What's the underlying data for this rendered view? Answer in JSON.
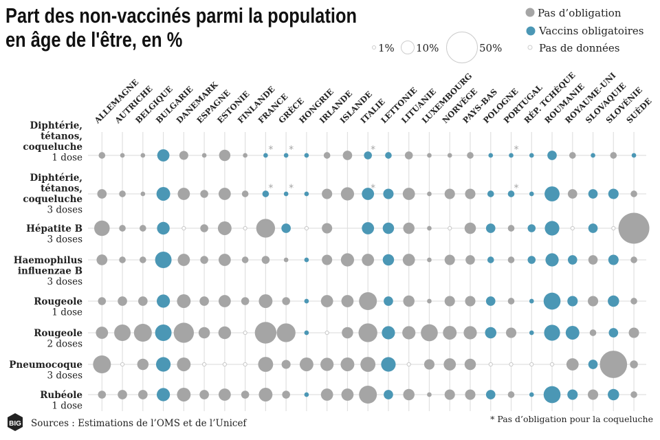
{
  "title_lines": [
    "Part des non-vaccinés parmi la population",
    "en âge de l'être, en %"
  ],
  "legend": {
    "sizes": [
      {
        "value": 1,
        "label": "1%"
      },
      {
        "value": 10,
        "label": "10%"
      },
      {
        "value": 50,
        "label": "50%"
      }
    ],
    "categories": [
      {
        "key": "n",
        "label": "Pas d’obligation",
        "color": "#a5a5a5"
      },
      {
        "key": "o",
        "label": "Vaccins obligatoires",
        "color": "#4b97b5"
      },
      {
        "key": "x",
        "label": "Pas de données",
        "color": "#ffffff"
      }
    ]
  },
  "footer": {
    "logo": "BIG",
    "source": "Sources : Estimations de l’OMS et de l’Unicef",
    "note": "* Pas d’obligation pour la coqueluche"
  },
  "chart_data": {
    "type": "bubble-matrix",
    "size_encoding": "area proportional to percentage of non-vaccinated",
    "columns": [
      "ALLEMAGNE",
      "AUTRICHE",
      "BELGIQUE",
      "BULGARIE",
      "DANEMARK",
      "ESPAGNE",
      "ESTONIE",
      "FINLANDE",
      "FRANCE",
      "GRÈCE",
      "HONGRIE",
      "IRLANDE",
      "ISLANDE",
      "ITALIE",
      "LETTONIE",
      "LITUANIE",
      "LUXEMBOURG",
      "NORVÈGE",
      "PAYS-BAS",
      "POLOGNE",
      "PORTUGAL",
      "RÉP. TCHÈQUE",
      "ROUMANIE",
      "ROYAUME-UNI",
      "SLOVAQUIE",
      "SLOVÉNIE",
      "SUÈDE"
    ],
    "rows": [
      {
        "name": [
          "Diphtérie,",
          "tétanos,",
          "coqueluche"
        ],
        "dose": "1 dose",
        "status": "nnnonnnnooonnoonnnnoooonono",
        "values": [
          2.3,
          1.1,
          1.1,
          7.8,
          4.2,
          1.1,
          6.7,
          1.1,
          1.1,
          1.1,
          1.1,
          2.3,
          4.6,
          3.3,
          2.3,
          3.3,
          1.1,
          1.1,
          2.3,
          1.1,
          1.1,
          1.1,
          4.6,
          2.3,
          1.1,
          2.3,
          1.1
        ],
        "asterisk": [
          "FRANCE",
          "GRÈCE",
          "ITALIE",
          "PORTUGAL"
        ]
      },
      {
        "name": [
          "Diphtérie,",
          "tétanos,",
          "coqueluche"
        ],
        "dose": "3 doses",
        "status": "nnnonnnnooonnoonnnnoooonoon",
        "values": [
          4.6,
          2.3,
          1.1,
          9.8,
          7.8,
          3.3,
          7.8,
          2.3,
          2.3,
          1.1,
          1.1,
          5.6,
          9.1,
          7.8,
          5.6,
          7.8,
          1.1,
          5.6,
          5.6,
          2.3,
          2.3,
          1.1,
          11.8,
          4.6,
          4.6,
          5.6,
          2.3
        ],
        "asterisk": [
          "FRANCE",
          "GRÈCE",
          "ITALIE",
          "PORTUGAL"
        ]
      },
      {
        "name": [
          "Hépatite B"
        ],
        "dose": "3 doses",
        "status": "nnnoxnnxnoxnnoonnxnonooxoxn",
        "values": [
          12.6,
          2.3,
          2.3,
          8.4,
          null,
          3.3,
          9.8,
          null,
          18.5,
          4.6,
          null,
          5.6,
          0,
          7.8,
          6.7,
          6.7,
          1.1,
          null,
          6.7,
          4.6,
          2.3,
          3.3,
          11.1,
          null,
          4.6,
          null,
          50
        ],
        "asterisk": []
      },
      {
        "name": [
          "Haemophilus",
          "influenzae B"
        ],
        "dose": "3 doses",
        "status": "nnnonnnnnnonnnonnnnonooonon",
        "values": [
          6.1,
          2.3,
          2.3,
          14.2,
          7.8,
          3.3,
          7.8,
          2.3,
          3.3,
          1.1,
          1.1,
          5.6,
          9.1,
          7.8,
          6.7,
          7.8,
          1.1,
          5.6,
          4.6,
          2.3,
          2.3,
          3.3,
          9.1,
          4.6,
          4.6,
          5.6,
          2.3
        ],
        "asterisk": []
      },
      {
        "name": [
          "Rougeole"
        ],
        "dose": "1 dose",
        "status": "nnnonnnnnnonnnonnnnonooonon",
        "values": [
          3.3,
          4.6,
          4.6,
          9.1,
          9.8,
          4.6,
          7.8,
          3.3,
          9.8,
          3.3,
          1.1,
          7.8,
          7.8,
          16.7,
          4.6,
          6.7,
          1.1,
          5.6,
          5.6,
          4.6,
          2.3,
          1.1,
          15,
          5.6,
          5.6,
          6.7,
          2.3
        ],
        "asterisk": []
      },
      {
        "name": [
          "Rougeole"
        ],
        "dose": "2 doses",
        "status": "nnnonnnxnnoxnnonnnnonooonon",
        "values": [
          7.8,
          14.2,
          16.7,
          14.2,
          21.3,
          6.7,
          8.4,
          null,
          24.4,
          18.5,
          1.1,
          null,
          6.7,
          18.5,
          9.1,
          9.1,
          15,
          9.8,
          9.1,
          6.7,
          5.6,
          1.1,
          13.3,
          9.8,
          2.3,
          4.6,
          5.6
        ],
        "asterisk": []
      },
      {
        "name": [
          "Pneumocoque"
        ],
        "dose": "3 doses",
        "status": "nxnonxxxnnnnnnoxnnnxxxxnonn",
        "values": [
          16.7,
          null,
          6.7,
          11.1,
          9.8,
          null,
          null,
          null,
          11.8,
          4.2,
          9.8,
          9.1,
          9.8,
          11.8,
          11.1,
          null,
          5.6,
          7.8,
          6.7,
          null,
          null,
          null,
          null,
          7.8,
          4.6,
          38.9,
          3.3
        ],
        "asterisk": []
      },
      {
        "name": [
          "Rubéole"
        ],
        "dose": "1 dose",
        "status": "nnnonnnnnnonnnonnnnonooonon",
        "values": [
          3.3,
          4.6,
          4.6,
          9.1,
          9.8,
          4.6,
          7.8,
          3.3,
          9.8,
          3.3,
          1.1,
          7.8,
          7.8,
          16.7,
          4.6,
          6.7,
          1.1,
          5.6,
          5.6,
          4.6,
          2.3,
          1.1,
          15,
          5.6,
          5.6,
          6.7,
          2.3
        ],
        "asterisk": []
      }
    ]
  }
}
